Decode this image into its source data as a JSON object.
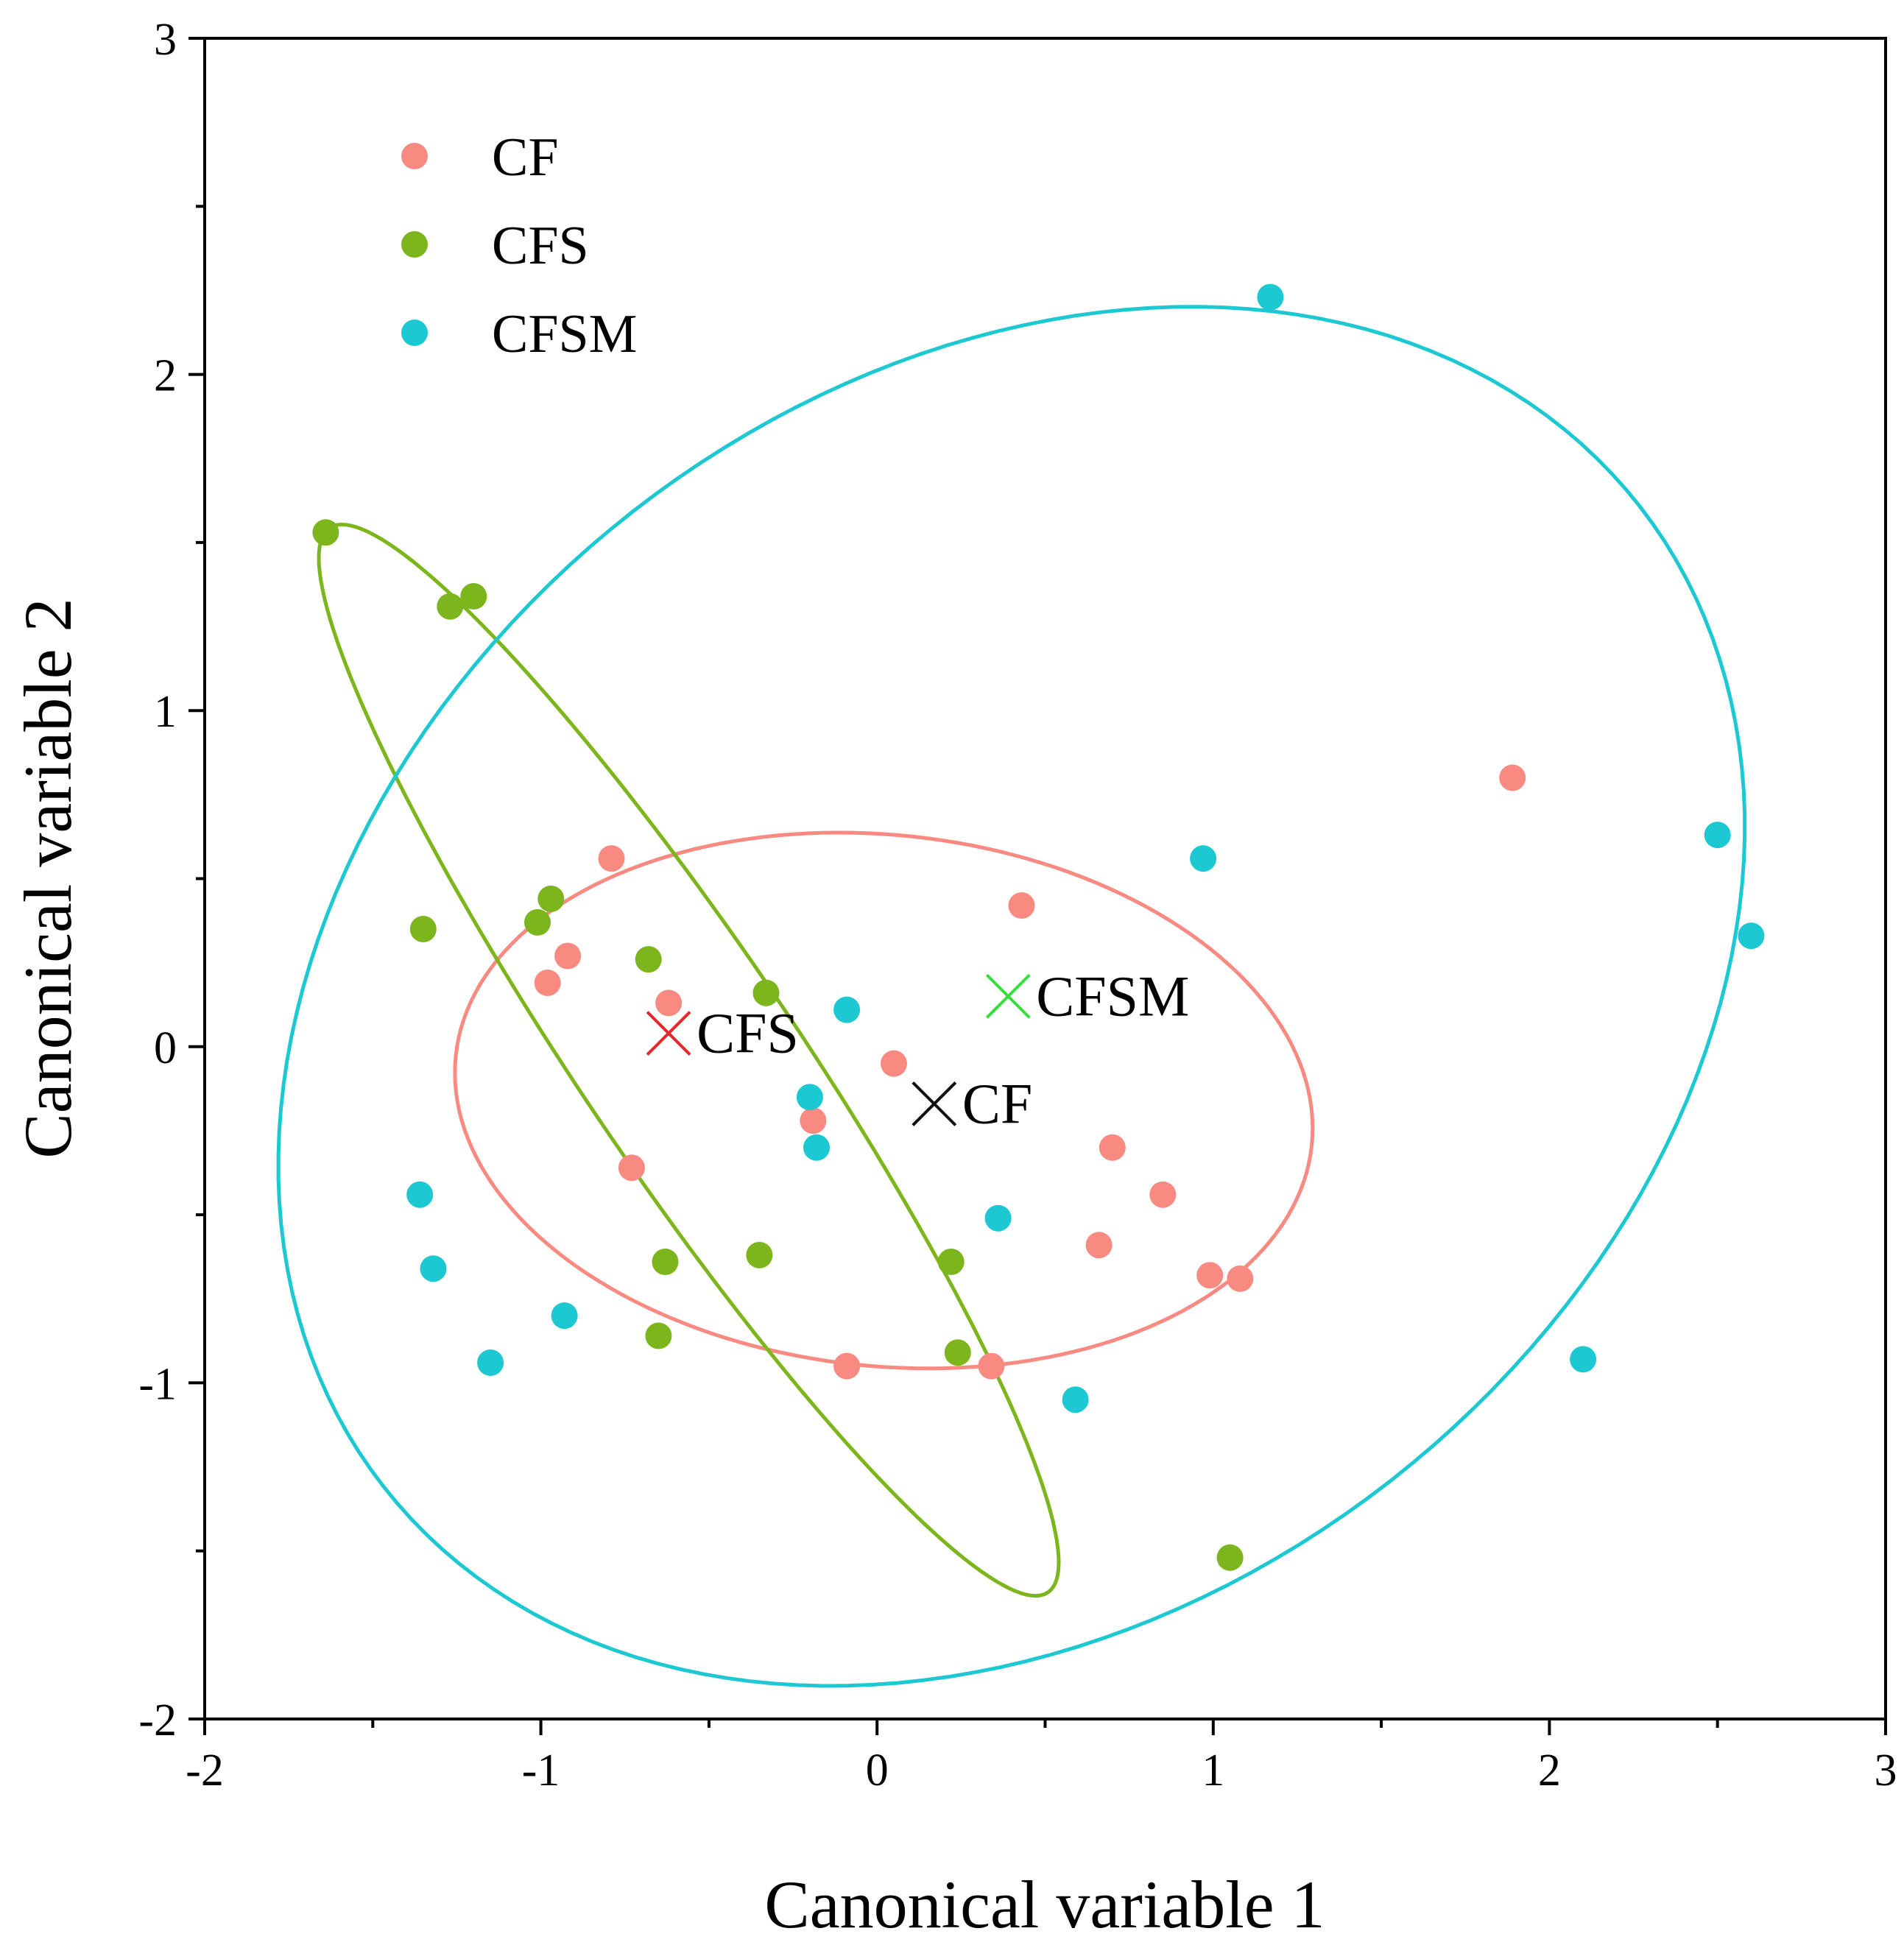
{
  "chart_data": {
    "type": "scatter",
    "title": "",
    "xlabel": "Canonical variable 1",
    "ylabel": "Canonical variable 2",
    "xlim": [
      -2,
      3
    ],
    "ylim": [
      -2,
      3
    ],
    "xticks": [
      -2,
      -1,
      0,
      1,
      2,
      3
    ],
    "yticks": [
      -2,
      -1,
      0,
      1,
      2,
      3
    ],
    "xtick_labels": [
      "-2",
      "-1",
      "0",
      "1",
      "2",
      "3"
    ],
    "ytick_labels": [
      "-2",
      "-1",
      "0",
      "1",
      "2",
      "3"
    ],
    "legend_position": "top-left",
    "series": [
      {
        "name": "CF",
        "color": "#f88a82",
        "points": [
          [
            -0.79,
            0.56
          ],
          [
            0.43,
            0.42
          ],
          [
            -0.92,
            0.27
          ],
          [
            -0.98,
            0.19
          ],
          [
            -0.62,
            0.13
          ],
          [
            0.05,
            -0.05
          ],
          [
            -0.19,
            -0.22
          ],
          [
            0.7,
            -0.3
          ],
          [
            -0.73,
            -0.36
          ],
          [
            0.85,
            -0.44
          ],
          [
            0.66,
            -0.59
          ],
          [
            0.99,
            -0.68
          ],
          [
            1.08,
            -0.69
          ],
          [
            -0.09,
            -0.95
          ],
          [
            0.34,
            -0.95
          ],
          [
            1.89,
            0.8
          ]
        ],
        "ellipse": {
          "cx": 0.02,
          "cy": -0.16,
          "rx": 1.28,
          "ry": 0.79,
          "angle_deg": -6
        }
      },
      {
        "name": "CFS",
        "color": "#7cb51c",
        "points": [
          [
            -1.64,
            1.53
          ],
          [
            -1.2,
            1.34
          ],
          [
            -1.27,
            1.31
          ],
          [
            -0.97,
            0.44
          ],
          [
            -1.01,
            0.37
          ],
          [
            -1.35,
            0.35
          ],
          [
            -0.68,
            0.26
          ],
          [
            -0.33,
            0.16
          ],
          [
            -0.35,
            -0.62
          ],
          [
            -0.63,
            -0.64
          ],
          [
            0.22,
            -0.64
          ],
          [
            -0.65,
            -0.86
          ],
          [
            0.24,
            -0.91
          ],
          [
            1.05,
            -1.52
          ]
        ],
        "ellipse": {
          "cx": -0.56,
          "cy": -0.04,
          "rx": 1.91,
          "ry": 0.32,
          "angle_deg": -56
        }
      },
      {
        "name": "CFSM",
        "color": "#1cc8d2",
        "points": [
          [
            1.17,
            2.23
          ],
          [
            2.5,
            0.63
          ],
          [
            0.97,
            0.56
          ],
          [
            2.6,
            0.33
          ],
          [
            -0.09,
            0.11
          ],
          [
            -0.2,
            -0.15
          ],
          [
            -0.18,
            -0.3
          ],
          [
            0.36,
            -0.51
          ],
          [
            -1.36,
            -0.44
          ],
          [
            -1.32,
            -0.66
          ],
          [
            -0.93,
            -0.8
          ],
          [
            -1.15,
            -0.94
          ],
          [
            2.1,
            -0.93
          ],
          [
            0.59,
            -1.05
          ]
        ],
        "ellipse": {
          "cx": 0.4,
          "cy": 0.15,
          "rx": 2.37,
          "ry": 1.83,
          "angle_deg": 38
        }
      }
    ],
    "centroids": [
      {
        "label": "CFS",
        "x": -0.62,
        "y": 0.04,
        "color": "#e8262a"
      },
      {
        "label": "CFSM",
        "x": 0.39,
        "y": 0.15,
        "color": "#33e03a"
      },
      {
        "label": "CF",
        "x": 0.17,
        "y": -0.17,
        "color": "#111111"
      }
    ]
  }
}
